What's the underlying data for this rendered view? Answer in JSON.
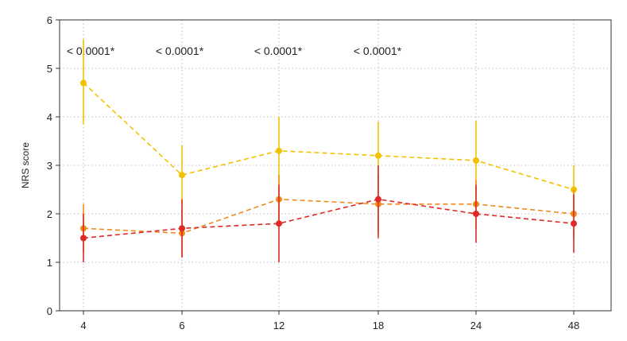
{
  "chart_data": {
    "type": "line",
    "x": [
      "4",
      "6",
      "12",
      "18",
      "24",
      "48"
    ],
    "ylabel": "NRS score",
    "xlabel": "",
    "ylim": [
      0,
      6
    ],
    "yticks": [
      "0",
      "1",
      "2",
      "3",
      "4",
      "5",
      "6"
    ],
    "grid": "dotted",
    "annotations": [
      "< 0.0001*",
      "< 0.0001*",
      "< 0.0001*",
      "< 0.0001*"
    ],
    "series": [
      {
        "color": "#f2c200",
        "values": [
          4.7,
          2.8,
          3.3,
          3.2,
          3.1,
          2.5
        ],
        "err_low": [
          3.85,
          2.2,
          2.6,
          2.5,
          2.35,
          2.05
        ],
        "err_high": [
          5.6,
          3.42,
          4.0,
          3.9,
          3.92,
          3.0
        ]
      },
      {
        "color": "#f08a1c",
        "values": [
          1.7,
          1.6,
          2.3,
          2.2,
          2.2,
          2.0
        ],
        "err_low": [
          1.2,
          1.1,
          1.7,
          1.6,
          1.7,
          1.5
        ],
        "err_high": [
          2.2,
          2.1,
          2.8,
          2.8,
          2.7,
          2.5
        ]
      },
      {
        "color": "#de2a26",
        "values": [
          1.5,
          1.7,
          1.8,
          2.3,
          2.0,
          1.8
        ],
        "err_low": [
          1.0,
          1.1,
          1.0,
          1.5,
          1.4,
          1.2
        ],
        "err_high": [
          2.0,
          2.3,
          2.6,
          3.0,
          2.6,
          2.4
        ]
      }
    ]
  }
}
